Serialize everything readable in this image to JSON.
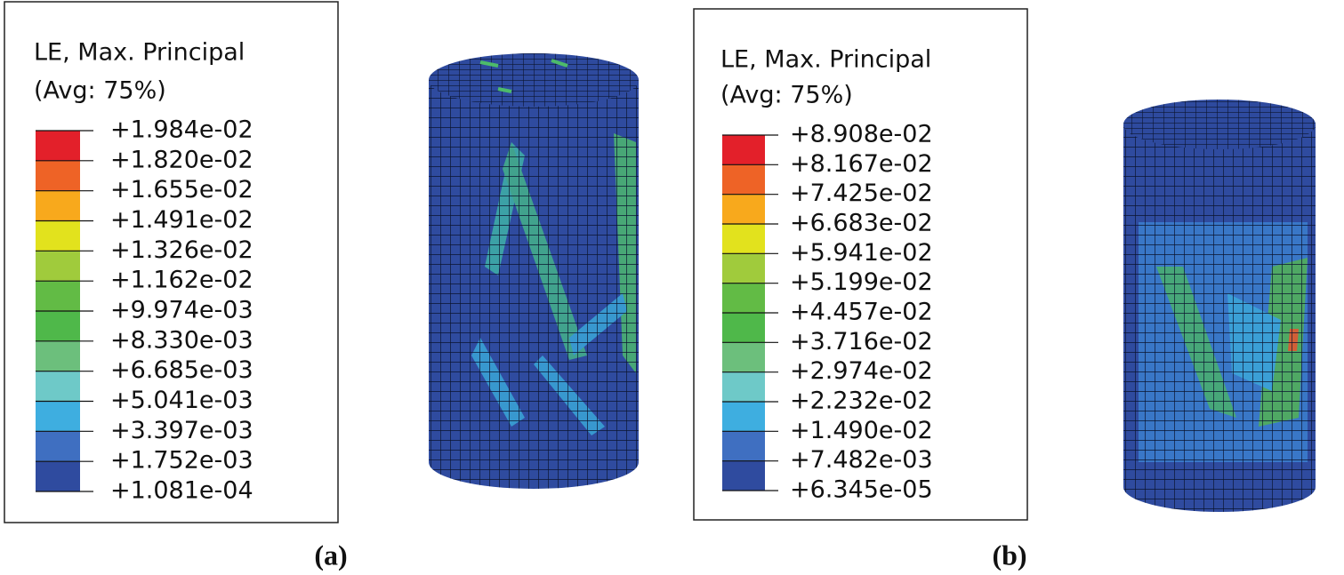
{
  "panels": [
    {
      "caption": "(a)",
      "legend": {
        "title": "LE, Max. Principal",
        "subtitle": "(Avg: 75%)",
        "labels": [
          "+1.984e-02",
          "+1.820e-02",
          "+1.655e-02",
          "+1.491e-02",
          "+1.326e-02",
          "+1.162e-02",
          "+9.974e-03",
          "+8.330e-03",
          "+6.685e-03",
          "+5.041e-03",
          "+3.397e-03",
          "+1.752e-03",
          "+1.081e-04"
        ],
        "colors": [
          "#e3202a",
          "#ee6326",
          "#f8a91c",
          "#e2e21d",
          "#a0cb3c",
          "#62bb45",
          "#4fb84a",
          "#6cbf7c",
          "#6ec9c8",
          "#3eaee0",
          "#3f6fc1",
          "#2f4b9f"
        ]
      }
    },
    {
      "caption": "(b)",
      "legend": {
        "title": "LE, Max. Principal",
        "subtitle": "(Avg: 75%)",
        "labels": [
          "+8.908e-02",
          "+8.167e-02",
          "+7.425e-02",
          "+6.683e-02",
          "+5.941e-02",
          "+5.199e-02",
          "+4.457e-02",
          "+3.716e-02",
          "+2.974e-02",
          "+2.232e-02",
          "+1.490e-02",
          "+7.482e-03",
          "+6.345e-05"
        ],
        "colors": [
          "#e3202a",
          "#ee6326",
          "#f8a91c",
          "#e2e21d",
          "#a0cb3c",
          "#62bb45",
          "#4fb84a",
          "#6cbf7c",
          "#6ec9c8",
          "#3eaee0",
          "#3f6fc1",
          "#2f4b9f"
        ]
      }
    }
  ]
}
